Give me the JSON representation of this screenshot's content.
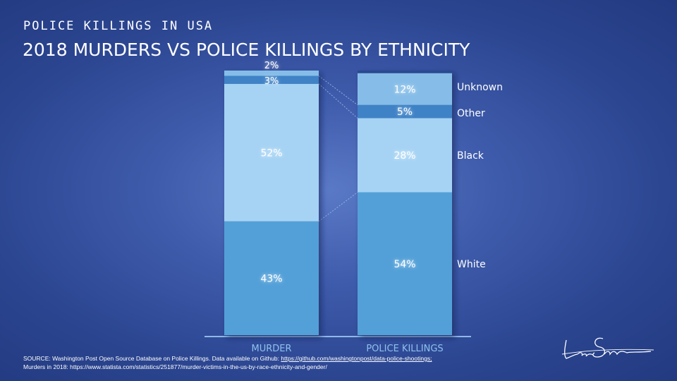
{
  "header": {
    "kicker": "POLICE KILLINGS IN USA",
    "title": "2018 MURDERS VS POLICE KILLINGS BY ETHNICITY"
  },
  "chart_data": {
    "type": "bar",
    "stacked": true,
    "categories": [
      "MURDER",
      "POLICE KILLINGS"
    ],
    "series": [
      {
        "name": "White",
        "values": [
          43,
          54
        ],
        "labels": [
          "43%",
          "54%"
        ],
        "color": "#53a0d8"
      },
      {
        "name": "Black",
        "values": [
          52,
          28
        ],
        "labels": [
          "52%",
          "28%"
        ],
        "color": "#a6d3f4"
      },
      {
        "name": "Other",
        "values": [
          3,
          5
        ],
        "labels": [
          "3%",
          "5%"
        ],
        "color": "#3f82c6"
      },
      {
        "name": "Unknown",
        "values": [
          2,
          12
        ],
        "labels": [
          "2%",
          "12%"
        ],
        "color": "#86bde8"
      }
    ],
    "legend": "right of second bar",
    "ylim": [
      0,
      100
    ],
    "grid": false
  },
  "source": {
    "prefix": "SOURCE: Washington Post Open Source Database on Police Killings. Data available on Github: ",
    "link": "https://github.com/washingtonpost/data-police-shootings;",
    "line2": "Murders in 2018: https://www.statista.com/statistics/251877/murder-victims-in-the-us-by-race-ethnicity-and-gender/"
  },
  "signature": {
    "text": "Lara Shirvan"
  }
}
